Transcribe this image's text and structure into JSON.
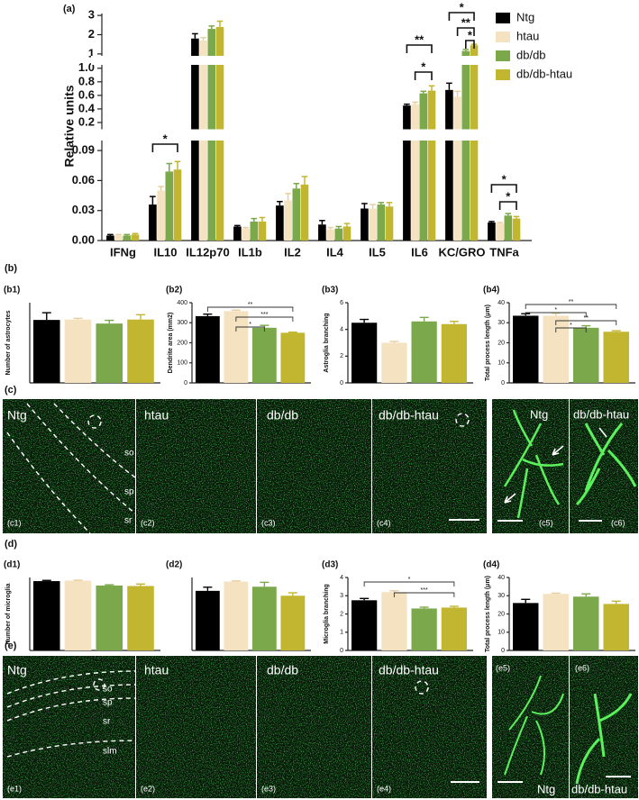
{
  "chart_data": [
    {
      "type": "broken-bar",
      "panel": "(a)",
      "y_label": "Relative units",
      "categories": [
        "IFNg",
        "IL10",
        "IL12p70",
        "IL1b",
        "IL2",
        "IL4",
        "IL5",
        "IL6",
        "KC/GRO",
        "TNFa"
      ],
      "y_segments": [
        {
          "ylim": [
            0,
            0.1
          ],
          "yticks": [
            {
              "value": 0,
              "label": "0.00"
            },
            {
              "value": 0.03,
              "label": "0.03"
            },
            {
              "value": 0.06,
              "label": "0.06"
            },
            {
              "value": 0.09,
              "label": "0.09"
            }
          ]
        },
        {
          "ylim": [
            0.1,
            1.05
          ],
          "yticks": [
            0.2,
            0.4,
            0.6,
            0.8,
            {
              "value": 1,
              "label": "1.0"
            }
          ]
        },
        {
          "ylim": [
            0.9,
            3.1
          ],
          "yticks": [
            1,
            2,
            3
          ]
        }
      ],
      "series": [
        {
          "name": "Ntg",
          "color": "#000000",
          "values": [
            0.005,
            0.036,
            1.8,
            0.014,
            0.035,
            0.016,
            0.032,
            0.45,
            0.68,
            0.018
          ],
          "errors": [
            0.001,
            0.008,
            0.25,
            0.001,
            0.004,
            0.004,
            0.005,
            0.02,
            0.1,
            0.001
          ]
        },
        {
          "name": "htau",
          "color": "#f5e2c0",
          "values": [
            0.005,
            0.05,
            1.7,
            0.012,
            0.04,
            0.011,
            0.032,
            0.47,
            0.58,
            0.017
          ],
          "errors": [
            0.001,
            0.004,
            0.15,
            0.001,
            0.007,
            0.002,
            0.004,
            0.03,
            0.08,
            0.001
          ]
        },
        {
          "name": "db/db",
          "color": "#7aa84a",
          "values": [
            0.005,
            0.069,
            2.3,
            0.019,
            0.052,
            0.012,
            0.036,
            0.63,
            1.15,
            0.025
          ],
          "errors": [
            0.001,
            0.008,
            0.15,
            0.003,
            0.005,
            0.002,
            0.002,
            0.03,
            0.08,
            0.002
          ]
        },
        {
          "name": "db/db-htau",
          "color": "#c2b530",
          "values": [
            0.006,
            0.071,
            2.4,
            0.019,
            0.056,
            0.014,
            0.034,
            0.67,
            1.45,
            0.022
          ],
          "errors": [
            0.001,
            0.008,
            0.3,
            0.004,
            0.008,
            0.003,
            0.004,
            0.07,
            0.05,
            0.002
          ]
        }
      ],
      "annotations": [
        "*",
        "**",
        "*",
        "*",
        "**",
        "*",
        "*",
        "*"
      ]
    },
    {
      "type": "bar",
      "panel": "(b1)",
      "y_label": "Number of astrocytes",
      "ylim": [
        0,
        200
      ],
      "values": [
        157,
        158,
        148,
        158
      ],
      "errors": [
        18,
        3,
        8,
        12
      ],
      "colors": [
        "#000000",
        "#f5e2c0",
        "#7aa84a",
        "#c2b530"
      ]
    },
    {
      "type": "bar",
      "panel": "(b2)",
      "y_label": "Dendrite area (mm2)",
      "ylim": [
        0,
        400
      ],
      "yticks": [
        0,
        100,
        200,
        300,
        400
      ],
      "values": [
        333,
        358,
        275,
        250
      ],
      "errors": [
        10,
        5,
        12,
        3
      ],
      "colors": [
        "#000000",
        "#f5e2c0",
        "#7aa84a",
        "#c2b530"
      ],
      "annotations": [
        "**",
        "***",
        "*"
      ]
    },
    {
      "type": "bar",
      "panel": "(b3)",
      "y_label": "Astroglia branching",
      "ylim": [
        0,
        6
      ],
      "yticks": [
        0,
        2,
        4,
        6
      ],
      "values": [
        4.5,
        3.0,
        4.6,
        4.4
      ],
      "errors": [
        0.25,
        0.1,
        0.3,
        0.2
      ],
      "colors": [
        "#000000",
        "#f5e2c0",
        "#7aa84a",
        "#c2b530"
      ]
    },
    {
      "type": "bar",
      "panel": "(b4)",
      "y_label": "Total process length (μm)",
      "ylim": [
        0,
        40
      ],
      "yticks": [
        0,
        10,
        20,
        30,
        40
      ],
      "values": [
        33.5,
        33.5,
        27.5,
        25.5
      ],
      "errors": [
        1,
        1.2,
        1,
        0.5
      ],
      "colors": [
        "#000000",
        "#f5e2c0",
        "#7aa84a",
        "#c2b530"
      ],
      "annotations": [
        "**",
        "*",
        "**",
        "*"
      ]
    },
    {
      "type": "bar",
      "panel": "(d1)",
      "y_label": "Number of microglia",
      "ylim": [
        0,
        300
      ],
      "values": [
        285,
        287,
        267,
        265
      ],
      "errors": [
        3,
        2,
        3,
        8
      ],
      "colors": [
        "#000000",
        "#f5e2c0",
        "#7aa84a",
        "#c2b530"
      ]
    },
    {
      "type": "bar",
      "panel": "(d2)",
      "ylim": [
        0,
        300
      ],
      "values": [
        245,
        283,
        262,
        225
      ],
      "errors": [
        15,
        3,
        18,
        12
      ],
      "colors": [
        "#000000",
        "#f5e2c0",
        "#7aa84a",
        "#c2b530"
      ]
    },
    {
      "type": "bar",
      "panel": "(d3)",
      "y_label": "Microglia branching",
      "ylim": [
        0,
        4
      ],
      "yticks": [
        0,
        1,
        2,
        3,
        4
      ],
      "values": [
        2.75,
        3.2,
        2.3,
        2.35
      ],
      "errors": [
        0.1,
        0.07,
        0.07,
        0.07
      ],
      "colors": [
        "#000000",
        "#f5e2c0",
        "#7aa84a",
        "#c2b530"
      ],
      "annotations": [
        "*",
        "***"
      ]
    },
    {
      "type": "bar",
      "panel": "(d4)",
      "y_label": "Total process length (μm)",
      "ylim": [
        0,
        40
      ],
      "yticks": [
        0,
        10,
        20,
        30,
        40
      ],
      "values": [
        26,
        31,
        29.5,
        25.5
      ],
      "errors": [
        2,
        0.4,
        1.5,
        1.5
      ],
      "colors": [
        "#000000",
        "#f5e2c0",
        "#7aa84a",
        "#c2b530"
      ]
    }
  ],
  "figure": {
    "sections": [
      "(b)",
      "(c)",
      "(d)",
      "(e)"
    ],
    "c_images": [
      {
        "panel": "(c1)",
        "labels": [
          "Ntg",
          "so",
          "sp",
          "sr"
        ]
      },
      {
        "panel": "(c2)",
        "labels": [
          "htau"
        ]
      },
      {
        "panel": "(c3)",
        "labels": [
          "db/db"
        ]
      },
      {
        "panel": "(c4)",
        "labels": [
          "db/db-htau"
        ]
      },
      {
        "panel": "(c5)",
        "labels": [
          "Ntg"
        ]
      },
      {
        "panel": "(c6)",
        "labels": [
          "db/db-htau"
        ]
      }
    ],
    "e_images": [
      {
        "panel": "(e1)",
        "labels": [
          "Ntg",
          "so",
          "sp",
          "sr",
          "slm"
        ]
      },
      {
        "panel": "(e2)",
        "labels": [
          "htau"
        ]
      },
      {
        "panel": "(e3)",
        "labels": [
          "db/db"
        ]
      },
      {
        "panel": "(e4)",
        "labels": [
          "db/db-htau"
        ]
      },
      {
        "panel": "(e5)",
        "labels": [
          "Ntg"
        ]
      },
      {
        "panel": "(e6)",
        "labels": [
          "db/db-htau"
        ]
      }
    ]
  }
}
